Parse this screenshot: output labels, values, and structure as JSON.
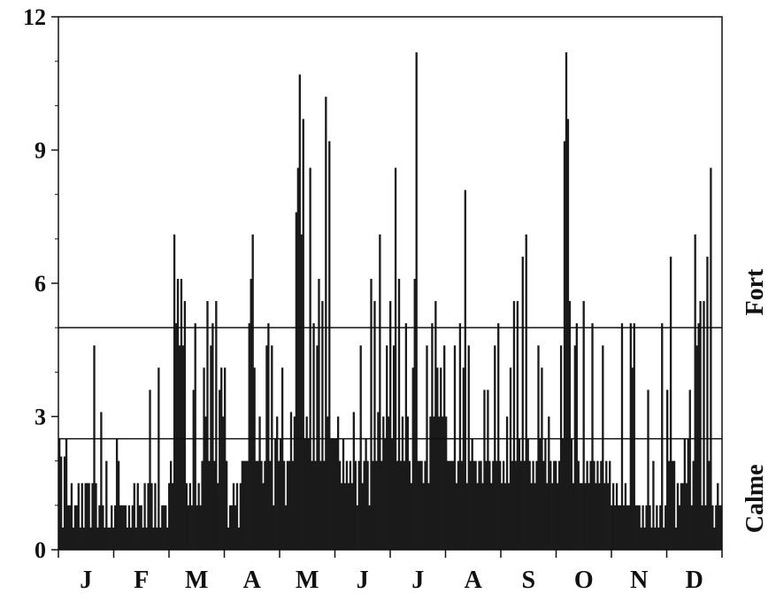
{
  "chart_data": {
    "type": "bar",
    "ylim": [
      0,
      12
    ],
    "yticks": [
      "0",
      "3",
      "6",
      "9",
      "12"
    ],
    "months": [
      "J",
      "F",
      "M",
      "A",
      "M",
      "J",
      "J",
      "A",
      "S",
      "O",
      "N",
      "D"
    ],
    "threshold_lines": [
      {
        "label": "Fort",
        "value": 5
      },
      {
        "label": "Calme",
        "value": 2.5
      }
    ],
    "bar_color": "#1a1a1a",
    "values": [
      2.5,
      2.1,
      0.5,
      2.1,
      2.5,
      1.0,
      1.0,
      1.5,
      0.5,
      1.0,
      1.0,
      1.5,
      0.5,
      1.5,
      0.5,
      1.5,
      1.5,
      1.5,
      0.5,
      1.5,
      4.6,
      1.5,
      0.5,
      1.0,
      3.1,
      1.0,
      0.5,
      2.0,
      0.5,
      0.5,
      1.0,
      0.5,
      1.0,
      2.5,
      2.0,
      1.0,
      1.0,
      1.0,
      1.0,
      0.5,
      1.0,
      0.5,
      1.0,
      1.5,
      0.5,
      1.5,
      1.0,
      1.0,
      0.5,
      1.5,
      0.5,
      1.5,
      3.6,
      1.5,
      0.5,
      1.5,
      0.5,
      4.1,
      0.5,
      1.0,
      1.0,
      1.0,
      0.5,
      1.5,
      2.0,
      1.5,
      7.1,
      5.1,
      6.1,
      4.6,
      6.1,
      4.6,
      5.6,
      1.5,
      1.0,
      1.5,
      1.0,
      3.6,
      5.1,
      1.0,
      1.5,
      1.0,
      2.0,
      4.1,
      3.0,
      5.6,
      2.0,
      4.6,
      5.1,
      2.0,
      5.6,
      1.5,
      3.6,
      4.1,
      3.0,
      4.1,
      2.0,
      0.5,
      1.0,
      1.0,
      1.5,
      1.0,
      1.5,
      0.5,
      1.5,
      2.0,
      2.0,
      2.0,
      2.0,
      5.1,
      6.1,
      7.1,
      4.1,
      2.0,
      2.0,
      3.0,
      2.0,
      1.5,
      2.0,
      4.6,
      5.1,
      2.0,
      4.6,
      1.0,
      2.5,
      3.0,
      2.0,
      2.5,
      4.1,
      2.0,
      1.0,
      2.0,
      2.0,
      3.1,
      2.0,
      3.0,
      7.6,
      8.6,
      10.7,
      7.1,
      9.7,
      2.5,
      3.0,
      2.5,
      8.6,
      2.0,
      5.1,
      2.0,
      4.6,
      6.1,
      2.0,
      5.6,
      2.0,
      10.2,
      3.0,
      9.2,
      2.5,
      2.5,
      2.5,
      2.5,
      3.0,
      2.0,
      1.5,
      2.5,
      1.5,
      2.0,
      1.5,
      2.0,
      1.5,
      3.1,
      2.0,
      1.0,
      2.0,
      4.6,
      1.5,
      2.0,
      2.5,
      2.0,
      1.0,
      6.1,
      2.0,
      5.6,
      2.0,
      3.1,
      7.1,
      2.0,
      3.0,
      2.5,
      4.6,
      3.0,
      5.6,
      2.5,
      4.6,
      8.6,
      2.0,
      6.1,
      2.0,
      3.0,
      2.0,
      5.1,
      3.0,
      2.0,
      1.5,
      4.1,
      6.1,
      11.2,
      2.0,
      2.0,
      2.0,
      1.5,
      2.0,
      4.6,
      1.5,
      3.0,
      5.1,
      3.0,
      5.6,
      4.1,
      3.0,
      4.1,
      3.0,
      4.6,
      3.0,
      2.0,
      2.0,
      2.0,
      2.0,
      4.6,
      1.5,
      2.0,
      5.1,
      2.0,
      4.1,
      8.1,
      1.5,
      4.6,
      2.0,
      2.5,
      2.0,
      2.0,
      1.5,
      2.0,
      2.0,
      1.5,
      3.6,
      2.0,
      3.6,
      2.0,
      1.5,
      2.0,
      4.6,
      2.0,
      5.1,
      2.0,
      1.5,
      2.0,
      1.5,
      3.0,
      1.5,
      4.1,
      2.0,
      5.6,
      2.0,
      5.6,
      2.5,
      2.0,
      6.6,
      2.0,
      7.1,
      2.5,
      2.0,
      1.5,
      2.0,
      1.5,
      2.0,
      4.6,
      2.5,
      4.1,
      2.0,
      2.5,
      1.5,
      3.0,
      2.0,
      1.5,
      2.0,
      2.0,
      1.5,
      2.0,
      4.6,
      2.5,
      9.2,
      11.2,
      9.7,
      5.6,
      2.5,
      1.5,
      4.6,
      5.1,
      2.0,
      1.5,
      1.5,
      5.6,
      1.5,
      2.0,
      1.5,
      2.0,
      5.1,
      2.0,
      1.5,
      2.0,
      1.5,
      2.0,
      4.6,
      1.5,
      2.0,
      1.5,
      2.0,
      1.0,
      1.5,
      1.0,
      1.5,
      1.0,
      1.0,
      5.1,
      1.0,
      1.5,
      1.0,
      1.0,
      5.1,
      4.1,
      5.1,
      1.0,
      1.0,
      1.0,
      0.5,
      1.0,
      0.5,
      1.0,
      3.6,
      1.0,
      0.5,
      2.0,
      0.5,
      1.0,
      0.5,
      1.0,
      5.1,
      0.5,
      1.0,
      3.6,
      2.0,
      6.6,
      2.0,
      2.0,
      0.5,
      1.5,
      1.0,
      1.5,
      1.5,
      2.5,
      1.5,
      2.5,
      3.6,
      1.0,
      2.0,
      7.1,
      4.6,
      5.1,
      5.6,
      1.0,
      5.6,
      1.0,
      6.6,
      2.0,
      8.6,
      1.0,
      0.5,
      1.0,
      1.5,
      1.0,
      1.0
    ]
  }
}
